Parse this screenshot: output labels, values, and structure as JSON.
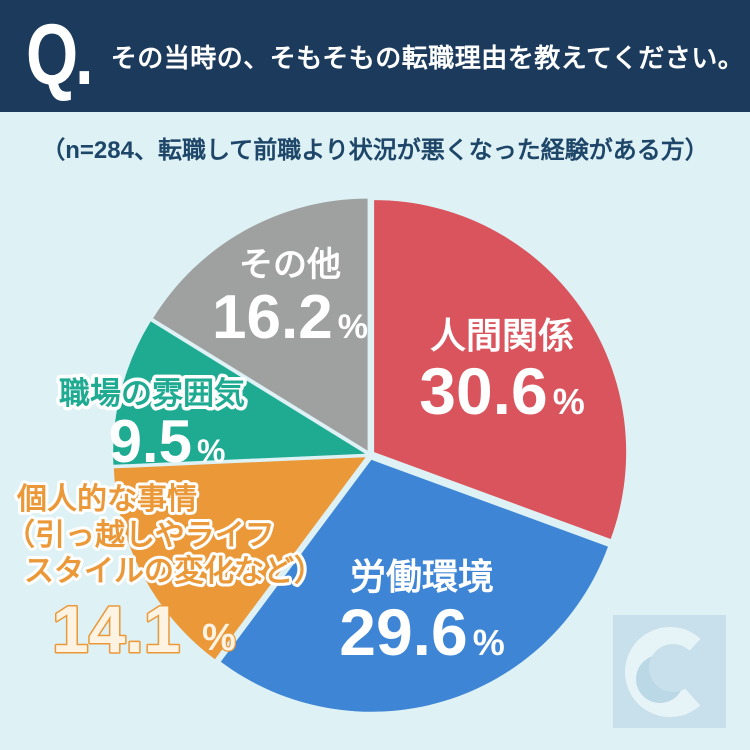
{
  "header": {
    "q_mark": "Q.",
    "title": "その当時の、そもそもの転職理由を教えてください。"
  },
  "subtitle": "（n=284、転職して前職より状況が悪くなった経験がある方）",
  "percent_sign": "%",
  "colors": {
    "header_bg": "#1b3a5c",
    "page_bg": "#def1f5",
    "label_text_on_slice": "#ffffff",
    "subtitle_text": "#1e4668"
  },
  "chart_data": {
    "type": "pie",
    "title": "その当時の、そもそもの転職理由を教えてください。",
    "note": "（n=284、転職して前職より状況が悪くなった経験がある方）",
    "unit": "%",
    "start_angle_deg": 0,
    "direction": "clockwise",
    "segments": [
      {
        "label": "人間関係",
        "value": 30.6,
        "color": "#d9545c"
      },
      {
        "label": "労働環境",
        "value": 29.6,
        "color": "#3e86d5"
      },
      {
        "label": "個人的な事情（引っ越しやライフスタイルの変化など）",
        "value": 14.1,
        "color": "#eb9838",
        "display_lines": [
          "個人的な事情",
          "（引っ越しやライフ",
          "スタイルの変化など）"
        ]
      },
      {
        "label": "職場の雰囲気",
        "value": 9.5,
        "color": "#1faa92"
      },
      {
        "label": "その他",
        "value": 16.2,
        "color": "#9fa0a0"
      }
    ]
  },
  "watermark": {
    "letter": "C"
  }
}
